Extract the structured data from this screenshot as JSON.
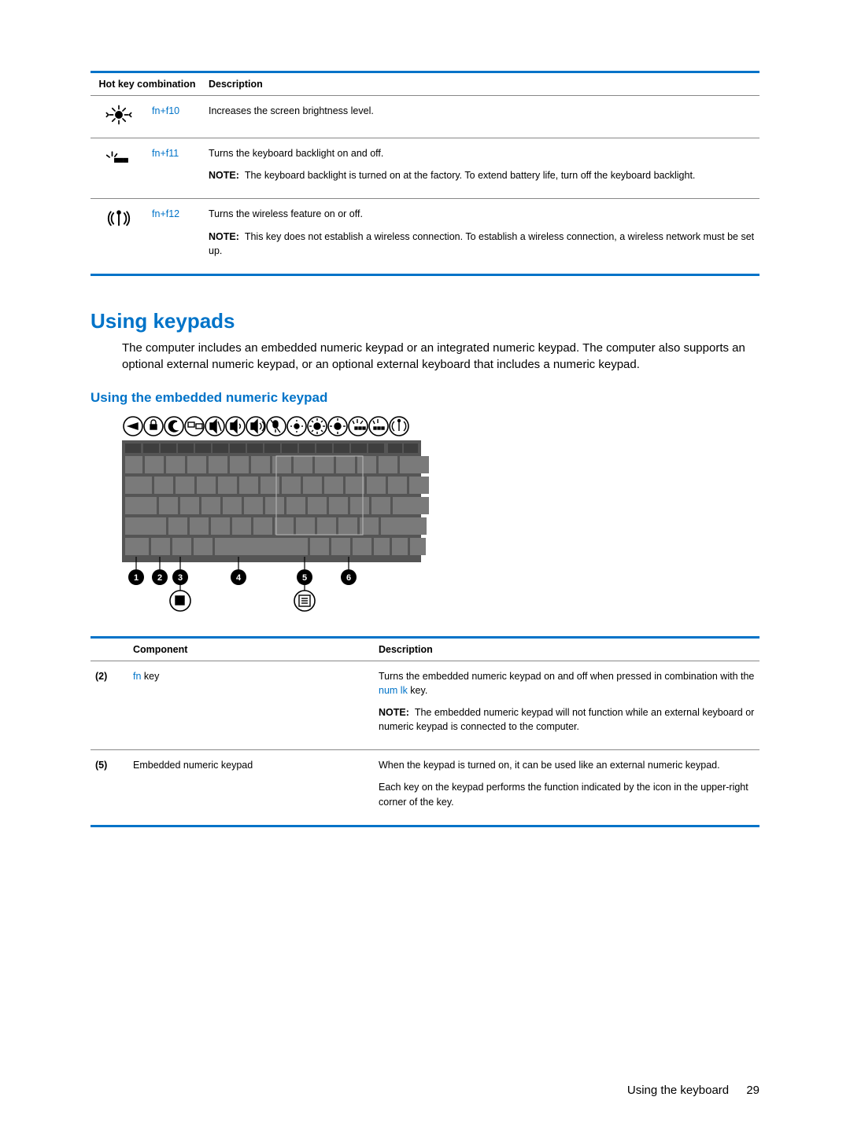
{
  "colors": {
    "accent": "#0073c8",
    "text": "#000000",
    "rule": "#888888",
    "kbd_bg": "#555555",
    "kbd_key": "#7a7a7a",
    "kbd_row_dark": "#3e3e3e",
    "white": "#ffffff",
    "black_marker": "#000000"
  },
  "hotkey_table": {
    "headers": {
      "combo": "Hot key combination",
      "desc": "Description"
    },
    "rows": [
      {
        "icon": "brightness-up",
        "fn": "fn",
        "plus": "+",
        "key": "f10",
        "desc": "Increases the screen brightness level."
      },
      {
        "icon": "backlight",
        "fn": "fn",
        "plus": "+",
        "key": "f11",
        "desc": "Turns the keyboard backlight on and off.",
        "note_label": "NOTE:",
        "note": "The keyboard backlight is turned on at the factory. To extend battery life, turn off the keyboard backlight."
      },
      {
        "icon": "wireless",
        "fn": "fn",
        "plus": "+",
        "key": "f12",
        "desc": "Turns the wireless feature on or off.",
        "note_label": "NOTE:",
        "note": "This key does not establish a wireless connection. To establish a wireless connection, a wireless network must be set up."
      }
    ]
  },
  "section1": {
    "heading": "Using keypads",
    "body": "The computer includes an embedded numeric keypad or an integrated numeric keypad. The computer also supports an optional external numeric keypad, or an optional external keyboard that includes a numeric keypad."
  },
  "section2": {
    "heading": "Using the embedded numeric keypad"
  },
  "component_table": {
    "headers": {
      "component": "Component",
      "desc": "Description"
    },
    "rows": [
      {
        "num": "(2)",
        "fn": "fn",
        "fn_suffix": " key",
        "desc1a": "Turns the embedded numeric keypad on and off when pressed in combination with the ",
        "numlk": "num lk",
        "desc1b": " key.",
        "note_label": "NOTE:",
        "note": "The embedded numeric keypad will not function while an external keyboard or numeric keypad is connected to the computer."
      },
      {
        "num": "(5)",
        "component": "Embedded numeric keypad",
        "desc1": "When the keypad is turned on, it can be used like an external numeric keypad.",
        "desc2": "Each key on the keypad performs the function indicated by the icon in the upper-right corner of the key."
      }
    ]
  },
  "footer": {
    "section": "Using the keyboard",
    "page": "29"
  },
  "callout_labels": [
    "1",
    "2",
    "3",
    "4",
    "5",
    "6"
  ]
}
